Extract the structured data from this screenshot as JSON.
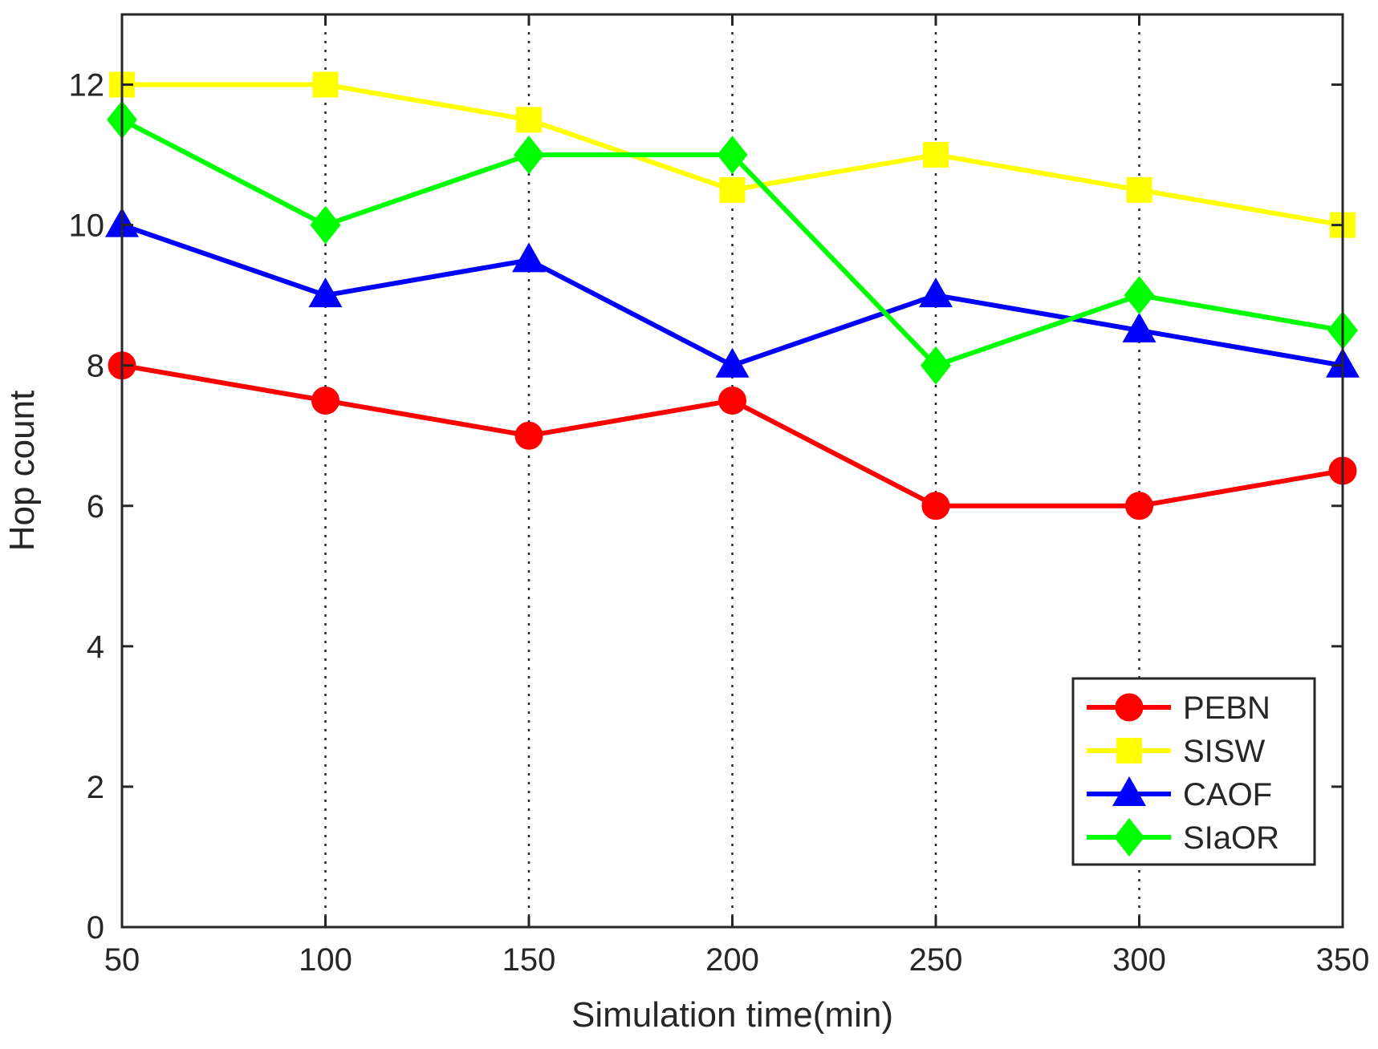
{
  "chart_data": {
    "type": "line",
    "title": "",
    "xlabel": "Simulation time(min)",
    "ylabel": "Hop count",
    "x": [
      50,
      100,
      150,
      200,
      250,
      300,
      350
    ],
    "xlim": [
      50,
      350
    ],
    "ylim": [
      0,
      13
    ],
    "xticks": [
      50,
      100,
      150,
      200,
      250,
      300,
      350
    ],
    "yticks": [
      0,
      2,
      4,
      6,
      8,
      10,
      12
    ],
    "grid": "vertical dotted lines at x ticks",
    "legend_position": "bottom-right",
    "series": [
      {
        "name": "PEBN",
        "color": "#ff0000",
        "marker": "circle",
        "values": [
          8,
          7.5,
          7,
          7.5,
          6,
          6,
          6.5
        ]
      },
      {
        "name": "SISW",
        "color": "#ffff00",
        "marker": "square",
        "values": [
          12,
          12,
          11.5,
          10.5,
          11,
          10.5,
          10
        ]
      },
      {
        "name": "CAOF",
        "color": "#0000ff",
        "marker": "triangle",
        "values": [
          10,
          9,
          9.5,
          8,
          9,
          8.5,
          8
        ]
      },
      {
        "name": "SIaOR",
        "color": "#00ff00",
        "marker": "diamond",
        "values": [
          11.5,
          10,
          11,
          11,
          8,
          9,
          8.5
        ]
      }
    ]
  }
}
